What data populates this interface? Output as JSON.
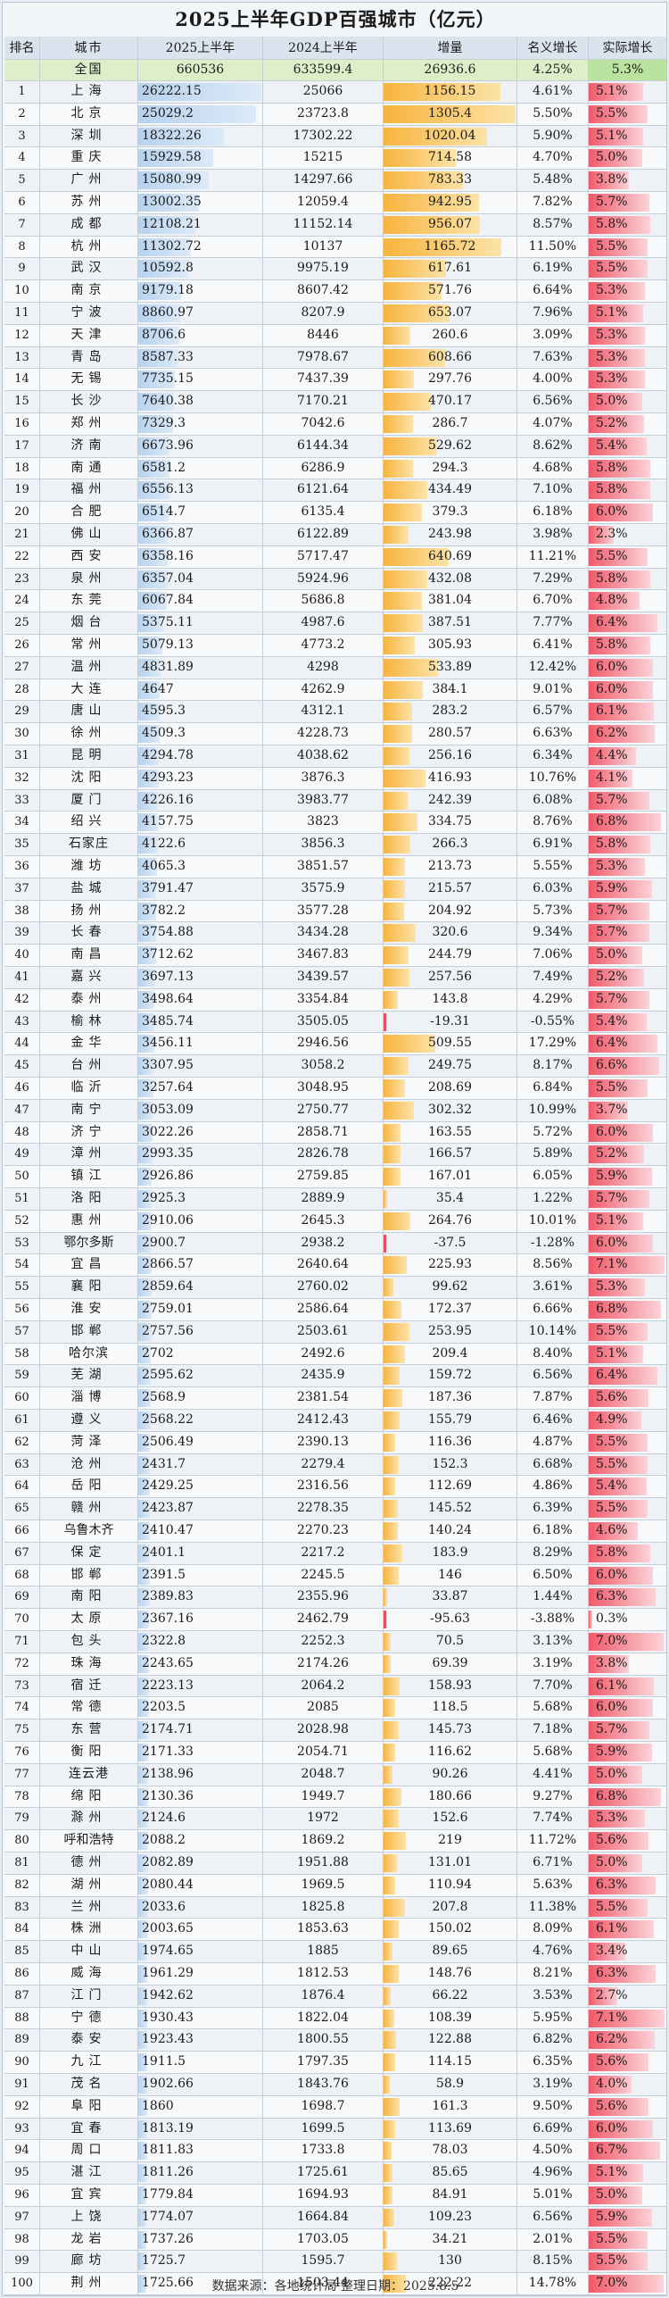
{
  "title": "2025上半年GDP百强城市（亿元）",
  "headers": [
    "排名",
    "城市",
    "2025上半年",
    "2024上半年",
    "增量",
    "名义增长",
    "实际增长"
  ],
  "total": {
    "city": "全国",
    "v2025": "660536",
    "v2024": "633599.4",
    "inc": "26936.6",
    "nom": "4.25%",
    "real": "5.3%"
  },
  "footer": "数据来源：各地统计局 整理日期：2025.8.5",
  "colors": {
    "bar_2025": "#b7d2ee",
    "bar_increase": "#f7b43e",
    "bar_negative": "#e84f5c",
    "bar_real": "#f05a6a"
  },
  "chart_data": {
    "type": "table",
    "title": "2025上半年GDP百强城市（亿元）",
    "columns": [
      "排名",
      "城市",
      "2025上半年",
      "2024上半年",
      "增量",
      "名义增长",
      "实际增长"
    ],
    "rows": [
      [
        1,
        "上海",
        "26222.15",
        "25066",
        "1156.15",
        "4.61%",
        "5.1%"
      ],
      [
        2,
        "北京",
        "25029.2",
        "23723.8",
        "1305.4",
        "5.50%",
        "5.5%"
      ],
      [
        3,
        "深圳",
        "18322.26",
        "17302.22",
        "1020.04",
        "5.90%",
        "5.1%"
      ],
      [
        4,
        "重庆",
        "15929.58",
        "15215",
        "714.58",
        "4.70%",
        "5.0%"
      ],
      [
        5,
        "广州",
        "15080.99",
        "14297.66",
        "783.33",
        "5.48%",
        "3.8%"
      ],
      [
        6,
        "苏州",
        "13002.35",
        "12059.4",
        "942.95",
        "7.82%",
        "5.7%"
      ],
      [
        7,
        "成都",
        "12108.21",
        "11152.14",
        "956.07",
        "8.57%",
        "5.8%"
      ],
      [
        8,
        "杭州",
        "11302.72",
        "10137",
        "1165.72",
        "11.50%",
        "5.5%"
      ],
      [
        9,
        "武汉",
        "10592.8",
        "9975.19",
        "617.61",
        "6.19%",
        "5.5%"
      ],
      [
        10,
        "南京",
        "9179.18",
        "8607.42",
        "571.76",
        "6.64%",
        "5.3%"
      ],
      [
        11,
        "宁波",
        "8860.97",
        "8207.9",
        "653.07",
        "7.96%",
        "5.1%"
      ],
      [
        12,
        "天津",
        "8706.6",
        "8446",
        "260.6",
        "3.09%",
        "5.3%"
      ],
      [
        13,
        "青岛",
        "8587.33",
        "7978.67",
        "608.66",
        "7.63%",
        "5.3%"
      ],
      [
        14,
        "无锡",
        "7735.15",
        "7437.39",
        "297.76",
        "4.00%",
        "5.3%"
      ],
      [
        15,
        "长沙",
        "7640.38",
        "7170.21",
        "470.17",
        "6.56%",
        "5.0%"
      ],
      [
        16,
        "郑州",
        "7329.3",
        "7042.6",
        "286.7",
        "4.07%",
        "5.2%"
      ],
      [
        17,
        "济南",
        "6673.96",
        "6144.34",
        "529.62",
        "8.62%",
        "5.4%"
      ],
      [
        18,
        "南通",
        "6581.2",
        "6286.9",
        "294.3",
        "4.68%",
        "5.8%"
      ],
      [
        19,
        "福州",
        "6556.13",
        "6121.64",
        "434.49",
        "7.10%",
        "5.8%"
      ],
      [
        20,
        "合肥",
        "6514.7",
        "6135.4",
        "379.3",
        "6.18%",
        "6.0%"
      ],
      [
        21,
        "佛山",
        "6366.87",
        "6122.89",
        "243.98",
        "3.98%",
        "2.3%"
      ],
      [
        22,
        "西安",
        "6358.16",
        "5717.47",
        "640.69",
        "11.21%",
        "5.5%"
      ],
      [
        23,
        "泉州",
        "6357.04",
        "5924.96",
        "432.08",
        "7.29%",
        "5.8%"
      ],
      [
        24,
        "东莞",
        "6067.84",
        "5686.8",
        "381.04",
        "6.70%",
        "4.8%"
      ],
      [
        25,
        "烟台",
        "5375.11",
        "4987.6",
        "387.51",
        "7.77%",
        "6.4%"
      ],
      [
        26,
        "常州",
        "5079.13",
        "4773.2",
        "305.93",
        "6.41%",
        "5.8%"
      ],
      [
        27,
        "温州",
        "4831.89",
        "4298",
        "533.89",
        "12.42%",
        "6.0%"
      ],
      [
        28,
        "大连",
        "4647",
        "4262.9",
        "384.1",
        "9.01%",
        "6.0%"
      ],
      [
        29,
        "唐山",
        "4595.3",
        "4312.1",
        "283.2",
        "6.57%",
        "6.1%"
      ],
      [
        30,
        "徐州",
        "4509.3",
        "4228.73",
        "280.57",
        "6.63%",
        "6.2%"
      ],
      [
        31,
        "昆明",
        "4294.78",
        "4038.62",
        "256.16",
        "6.34%",
        "4.4%"
      ],
      [
        32,
        "沈阳",
        "4293.23",
        "3876.3",
        "416.93",
        "10.76%",
        "4.1%"
      ],
      [
        33,
        "厦门",
        "4226.16",
        "3983.77",
        "242.39",
        "6.08%",
        "5.7%"
      ],
      [
        34,
        "绍兴",
        "4157.75",
        "3823",
        "334.75",
        "8.76%",
        "6.8%"
      ],
      [
        35,
        "石家庄",
        "4122.6",
        "3856.3",
        "266.3",
        "6.91%",
        "5.8%"
      ],
      [
        36,
        "潍坊",
        "4065.3",
        "3851.57",
        "213.73",
        "5.55%",
        "5.3%"
      ],
      [
        37,
        "盐城",
        "3791.47",
        "3575.9",
        "215.57",
        "6.03%",
        "5.9%"
      ],
      [
        38,
        "扬州",
        "3782.2",
        "3577.28",
        "204.92",
        "5.73%",
        "5.7%"
      ],
      [
        39,
        "长春",
        "3754.88",
        "3434.28",
        "320.6",
        "9.34%",
        "5.7%"
      ],
      [
        40,
        "南昌",
        "3712.62",
        "3467.83",
        "244.79",
        "7.06%",
        "5.0%"
      ],
      [
        41,
        "嘉兴",
        "3697.13",
        "3439.57",
        "257.56",
        "7.49%",
        "5.2%"
      ],
      [
        42,
        "泰州",
        "3498.64",
        "3354.84",
        "143.8",
        "4.29%",
        "5.7%"
      ],
      [
        43,
        "榆林",
        "3485.74",
        "3505.05",
        "-19.31",
        "-0.55%",
        "5.4%"
      ],
      [
        44,
        "金华",
        "3456.11",
        "2946.56",
        "509.55",
        "17.29%",
        "6.4%"
      ],
      [
        45,
        "台州",
        "3307.95",
        "3058.2",
        "249.75",
        "8.17%",
        "6.6%"
      ],
      [
        46,
        "临沂",
        "3257.64",
        "3048.95",
        "208.69",
        "6.84%",
        "5.5%"
      ],
      [
        47,
        "南宁",
        "3053.09",
        "2750.77",
        "302.32",
        "10.99%",
        "3.7%"
      ],
      [
        48,
        "济宁",
        "3022.26",
        "2858.71",
        "163.55",
        "5.72%",
        "6.0%"
      ],
      [
        49,
        "漳州",
        "2993.35",
        "2826.78",
        "166.57",
        "5.89%",
        "5.2%"
      ],
      [
        50,
        "镇江",
        "2926.86",
        "2759.85",
        "167.01",
        "6.05%",
        "5.9%"
      ],
      [
        51,
        "洛阳",
        "2925.3",
        "2889.9",
        "35.4",
        "1.22%",
        "5.7%"
      ],
      [
        52,
        "惠州",
        "2910.06",
        "2645.3",
        "264.76",
        "10.01%",
        "5.1%"
      ],
      [
        53,
        "鄂尔多斯",
        "2900.7",
        "2938.2",
        "-37.5",
        "-1.28%",
        "6.0%"
      ],
      [
        54,
        "宜昌",
        "2866.57",
        "2640.64",
        "225.93",
        "8.56%",
        "7.1%"
      ],
      [
        55,
        "襄阳",
        "2859.64",
        "2760.02",
        "99.62",
        "3.61%",
        "5.3%"
      ],
      [
        56,
        "淮安",
        "2759.01",
        "2586.64",
        "172.37",
        "6.66%",
        "6.8%"
      ],
      [
        57,
        "邯郸",
        "2757.56",
        "2503.61",
        "253.95",
        "10.14%",
        "5.5%"
      ],
      [
        58,
        "哈尔滨",
        "2702",
        "2492.6",
        "209.4",
        "8.40%",
        "5.1%"
      ],
      [
        59,
        "芜湖",
        "2595.62",
        "2435.9",
        "159.72",
        "6.56%",
        "6.4%"
      ],
      [
        60,
        "淄博",
        "2568.9",
        "2381.54",
        "187.36",
        "7.87%",
        "5.6%"
      ],
      [
        61,
        "遵义",
        "2568.22",
        "2412.43",
        "155.79",
        "6.46%",
        "4.9%"
      ],
      [
        62,
        "菏泽",
        "2506.49",
        "2390.13",
        "116.36",
        "4.87%",
        "5.5%"
      ],
      [
        63,
        "沧州",
        "2431.7",
        "2279.4",
        "152.3",
        "6.68%",
        "5.5%"
      ],
      [
        64,
        "岳阳",
        "2429.25",
        "2316.56",
        "112.69",
        "4.86%",
        "5.4%"
      ],
      [
        65,
        "赣州",
        "2423.87",
        "2278.35",
        "145.52",
        "6.39%",
        "5.5%"
      ],
      [
        66,
        "乌鲁木齐",
        "2410.47",
        "2270.23",
        "140.24",
        "6.18%",
        "4.6%"
      ],
      [
        67,
        "保定",
        "2401.1",
        "2217.2",
        "183.9",
        "8.29%",
        "5.8%"
      ],
      [
        68,
        "邯郸",
        "2391.5",
        "2245.5",
        "146",
        "6.50%",
        "6.0%"
      ],
      [
        69,
        "南阳",
        "2389.83",
        "2355.96",
        "33.87",
        "1.44%",
        "6.3%"
      ],
      [
        70,
        "太原",
        "2367.16",
        "2462.79",
        "-95.63",
        "-3.88%",
        "0.3%"
      ],
      [
        71,
        "包头",
        "2322.8",
        "2252.3",
        "70.5",
        "3.13%",
        "7.0%"
      ],
      [
        72,
        "珠海",
        "2243.65",
        "2174.26",
        "69.39",
        "3.19%",
        "3.8%"
      ],
      [
        73,
        "宿迁",
        "2223.13",
        "2064.2",
        "158.93",
        "7.70%",
        "6.1%"
      ],
      [
        74,
        "常德",
        "2203.5",
        "2085",
        "118.5",
        "5.68%",
        "6.0%"
      ],
      [
        75,
        "东营",
        "2174.71",
        "2028.98",
        "145.73",
        "7.18%",
        "5.7%"
      ],
      [
        76,
        "衡阳",
        "2171.33",
        "2054.71",
        "116.62",
        "5.68%",
        "5.9%"
      ],
      [
        77,
        "连云港",
        "2138.96",
        "2048.7",
        "90.26",
        "4.41%",
        "5.0%"
      ],
      [
        78,
        "绵阳",
        "2130.36",
        "1949.7",
        "180.66",
        "9.27%",
        "6.8%"
      ],
      [
        79,
        "滁州",
        "2124.6",
        "1972",
        "152.6",
        "7.74%",
        "5.3%"
      ],
      [
        80,
        "呼和浩特",
        "2088.2",
        "1869.2",
        "219",
        "11.72%",
        "5.6%"
      ],
      [
        81,
        "德州",
        "2082.89",
        "1951.88",
        "131.01",
        "6.71%",
        "5.0%"
      ],
      [
        82,
        "湖州",
        "2080.44",
        "1969.5",
        "110.94",
        "5.63%",
        "6.3%"
      ],
      [
        83,
        "兰州",
        "2033.6",
        "1825.8",
        "207.8",
        "11.38%",
        "5.5%"
      ],
      [
        84,
        "株洲",
        "2003.65",
        "1853.63",
        "150.02",
        "8.09%",
        "6.1%"
      ],
      [
        85,
        "中山",
        "1974.65",
        "1885",
        "89.65",
        "4.76%",
        "3.4%"
      ],
      [
        86,
        "威海",
        "1961.29",
        "1812.53",
        "148.76",
        "8.21%",
        "6.3%"
      ],
      [
        87,
        "江门",
        "1942.62",
        "1876.4",
        "66.22",
        "3.53%",
        "2.7%"
      ],
      [
        88,
        "宁德",
        "1930.43",
        "1822.04",
        "108.39",
        "5.95%",
        "7.1%"
      ],
      [
        89,
        "泰安",
        "1923.43",
        "1800.55",
        "122.88",
        "6.82%",
        "6.2%"
      ],
      [
        90,
        "九江",
        "1911.5",
        "1797.35",
        "114.15",
        "6.35%",
        "5.6%"
      ],
      [
        91,
        "茂名",
        "1902.66",
        "1843.76",
        "58.9",
        "3.19%",
        "4.0%"
      ],
      [
        92,
        "阜阳",
        "1860",
        "1698.7",
        "161.3",
        "9.50%",
        "5.6%"
      ],
      [
        93,
        "宜春",
        "1813.19",
        "1699.5",
        "113.69",
        "6.69%",
        "6.0%"
      ],
      [
        94,
        "周口",
        "1811.83",
        "1733.8",
        "78.03",
        "4.50%",
        "6.7%"
      ],
      [
        95,
        "湛江",
        "1811.26",
        "1725.61",
        "85.65",
        "4.96%",
        "5.1%"
      ],
      [
        96,
        "宜宾",
        "1779.84",
        "1694.93",
        "84.91",
        "5.01%",
        "5.0%"
      ],
      [
        97,
        "上饶",
        "1774.07",
        "1664.84",
        "109.23",
        "6.56%",
        "5.9%"
      ],
      [
        98,
        "龙岩",
        "1737.26",
        "1703.05",
        "34.21",
        "2.01%",
        "5.5%"
      ],
      [
        99,
        "廊坊",
        "1725.7",
        "1595.7",
        "130",
        "8.15%",
        "5.5%"
      ],
      [
        100,
        "荆州",
        "1725.66",
        "1503.44",
        "222.22",
        "14.78%",
        "7.0%"
      ]
    ]
  }
}
